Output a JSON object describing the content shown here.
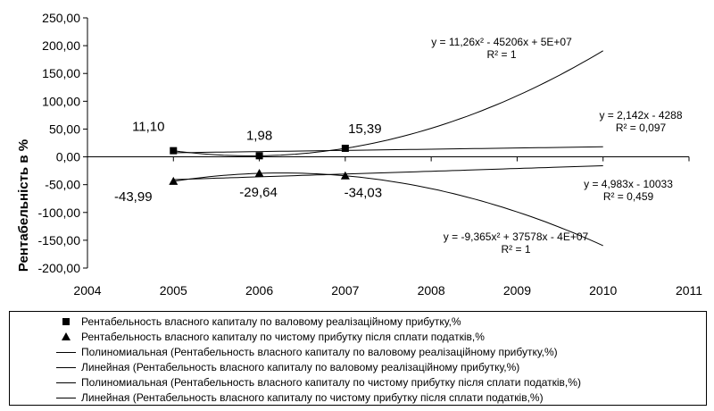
{
  "chart_data": {
    "type": "scatter",
    "ylabel": "Рентабельність в %",
    "xlim": [
      2004,
      2011
    ],
    "ylim": [
      -200,
      250
    ],
    "x_ticks": [
      "2004",
      "2005",
      "2006",
      "2007",
      "2008",
      "2009",
      "2010",
      "2011"
    ],
    "y_ticks": [
      "250,00",
      "200,00",
      "150,00",
      "100,00",
      "50,00",
      "0,00",
      "-50,00",
      "-100,00",
      "-150,00",
      "-200,00"
    ],
    "series": [
      {
        "name": "Рентабельность власного капиталу  по валовому реалізаційному прибутку,%",
        "marker": "square",
        "x": [
          2005,
          2006,
          2007
        ],
        "y": [
          11.1,
          1.98,
          15.39
        ],
        "labels": [
          "11,10",
          "1,98",
          "15,39"
        ]
      },
      {
        "name": "Рентабельность власного капиталу  по чистому прибутку після сплати податків,%",
        "marker": "triangle",
        "x": [
          2005,
          2006,
          2007
        ],
        "y": [
          -43.99,
          -29.64,
          -34.03
        ],
        "labels": [
          "-43,99",
          "-29,64",
          "-34,03"
        ]
      }
    ],
    "trendlines": [
      {
        "name": "Полиномиальная (Рентабельность власного капиталу  по валовому реалізаційному прибутку,%)",
        "kind": "polynomial",
        "series": 0,
        "equation": "y = 11,26x² - 45206x + 5E+07",
        "r2": "R² = 1"
      },
      {
        "name": "Линейная (Рентабельность власного капиталу  по валовому реалізаційному прибутку,%)",
        "kind": "linear",
        "series": 0,
        "equation": "y = 2,142x - 4288",
        "r2": "R² = 0,097"
      },
      {
        "name": "Полиномиальная (Рентабельность власного капиталу  по чистому прибутку після сплати податків,%)",
        "kind": "polynomial",
        "series": 1,
        "equation": "y = -9,365x² + 37578x - 4E+07",
        "r2": "R² = 1"
      },
      {
        "name": "Линейная (Рентабельность власного капиталу  по чистому прибутку після сплати податків,%)",
        "kind": "linear",
        "series": 1,
        "equation": "y = 4,983x - 10033",
        "r2": "R² = 0,459"
      }
    ],
    "legend_position": "bottom"
  }
}
